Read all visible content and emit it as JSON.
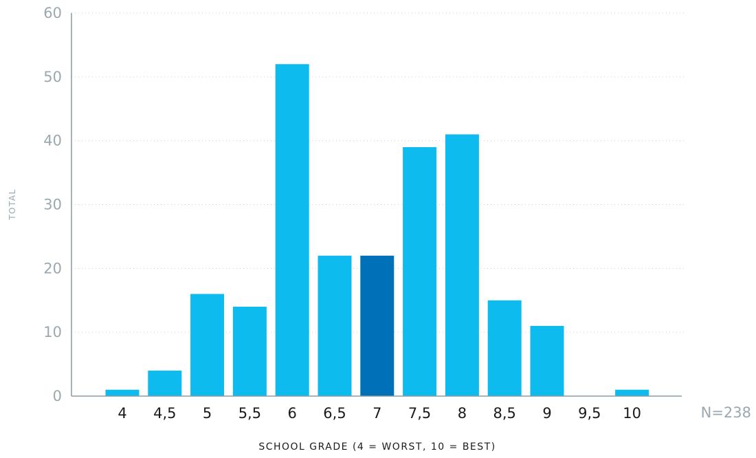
{
  "chart_data": {
    "type": "bar",
    "categories": [
      "4",
      "4,5",
      "5",
      "5,5",
      "6",
      "6,5",
      "7",
      "7,5",
      "8",
      "8,5",
      "9",
      "9,5",
      "10"
    ],
    "values": [
      1,
      4,
      16,
      14,
      52,
      22,
      22,
      39,
      41,
      15,
      11,
      0,
      1
    ],
    "highlight_category": "7",
    "xlabel": "SCHOOL GRADE (4 = WORST, 10 = BEST)",
    "ylabel": "TOTAL",
    "ylim": [
      0,
      60
    ],
    "yticks": [
      0,
      10,
      20,
      30,
      40,
      50,
      60
    ],
    "annotation": "N=238",
    "grid": true,
    "grid_style": "dotted",
    "colors": {
      "bar": "#0dbbee",
      "highlight": "#0071b9",
      "axis": "#8a9aa3",
      "tick_label_y": "#9aa8b0",
      "tick_label_x": "#1a1a1a",
      "grid": "#c8cfd3",
      "annotation": "#9aa8b0",
      "xlabel": "#1a1a1a",
      "ylabel": "#9aa8b0"
    }
  }
}
